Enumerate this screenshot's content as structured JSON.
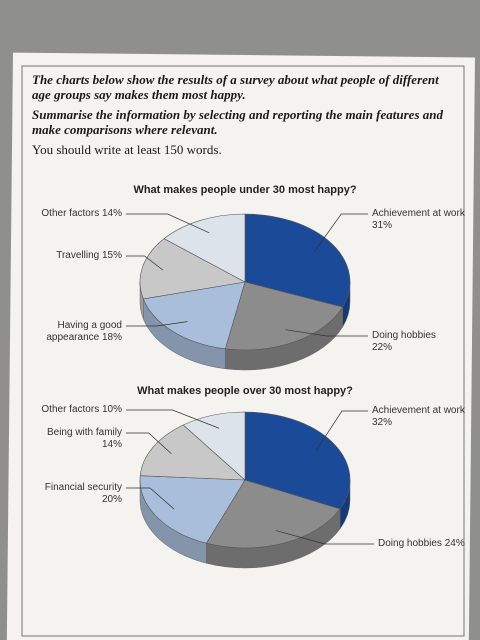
{
  "prompt": {
    "lines": [
      "The charts below show the results of a survey about what people of different age groups say makes them most happy.",
      "Summarise the information by selecting and reporting the main features and make comparisons where relevant.",
      "You should write at least 150 words."
    ]
  },
  "chart_data": [
    {
      "type": "pie",
      "title": "What makes people under 30 most happy?",
      "categories": [
        "Achievement at work",
        "Doing hobbies",
        "Having a good appearance",
        "Travelling",
        "Other factors"
      ],
      "values": [
        31,
        22,
        18,
        15,
        14
      ],
      "value_labels": [
        "31%",
        "22%",
        "18%",
        "15%",
        "14%"
      ],
      "colors": [
        "#1b4a98",
        "#8c8c8c",
        "#a8bedb",
        "#c8c8c8",
        "#dde3ea"
      ]
    },
    {
      "type": "pie",
      "title": "What makes people over 30 most happy?",
      "categories": [
        "Achievement at work",
        "Doing hobbies",
        "Financial security",
        "Being with family",
        "Other factors"
      ],
      "values": [
        32,
        24,
        20,
        14,
        10
      ],
      "value_labels": [
        "32%",
        "24%",
        "20%",
        "14%",
        "10%"
      ],
      "colors": [
        "#1b4a98",
        "#8c8c8c",
        "#a8bedb",
        "#c8c8c8",
        "#dde3ea"
      ]
    }
  ]
}
